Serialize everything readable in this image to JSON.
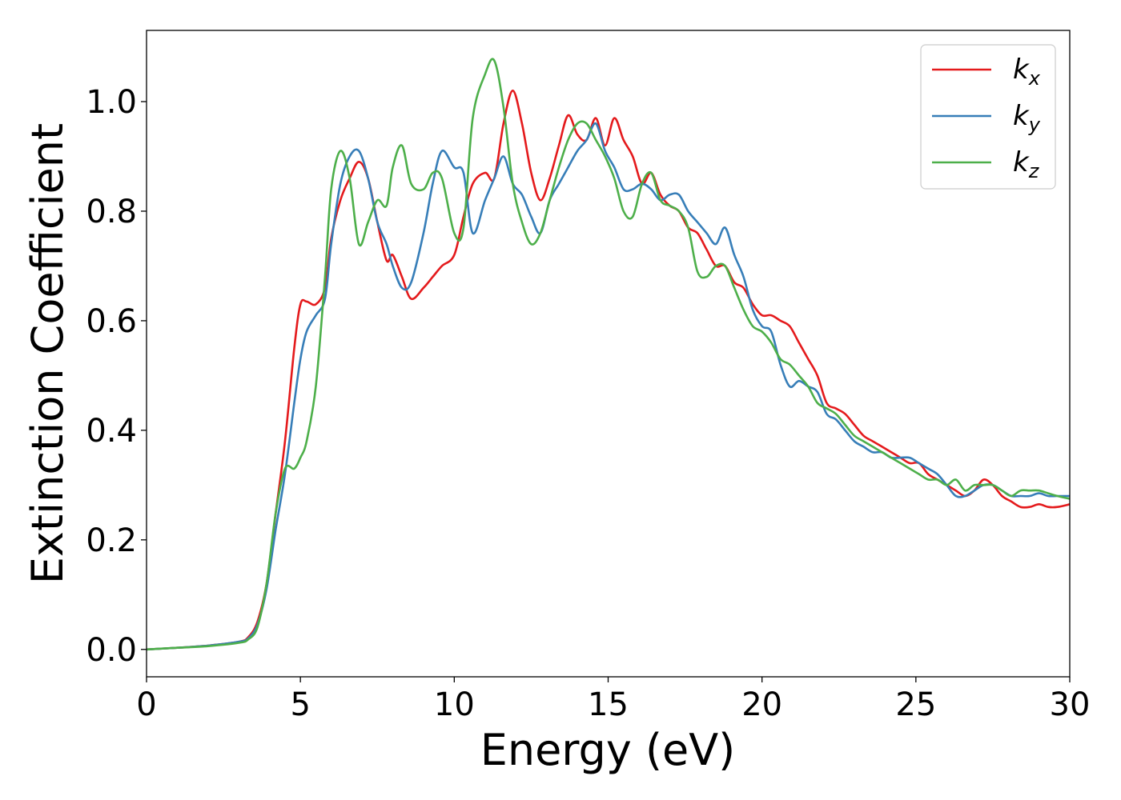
{
  "chart_data": {
    "type": "line",
    "title": "",
    "xlabel": "Energy (eV)",
    "ylabel": "Extinction Coefficient",
    "xlim": [
      0,
      30
    ],
    "ylim": [
      -0.05,
      1.13
    ],
    "xticks": [
      0,
      5,
      10,
      15,
      20,
      25,
      30
    ],
    "xtick_labels": [
      "0",
      "5",
      "10",
      "15",
      "20",
      "25",
      "30"
    ],
    "yticks": [
      0.0,
      0.2,
      0.4,
      0.6,
      0.8,
      1.0
    ],
    "ytick_labels": [
      "0.0",
      "0.2",
      "0.4",
      "0.6",
      "0.8",
      "1.0"
    ],
    "grid": false,
    "legend_position": "top-right",
    "series": [
      {
        "name": "k_x",
        "label_main": "k",
        "label_sub": "x",
        "color": "#e41a1c",
        "x": [
          0,
          1,
          2,
          3,
          3.3,
          3.6,
          3.9,
          4.2,
          4.5,
          4.8,
          5.0,
          5.2,
          5.5,
          5.8,
          6.0,
          6.3,
          6.6,
          6.9,
          7.2,
          7.5,
          7.8,
          8.0,
          8.3,
          8.6,
          9.0,
          9.3,
          9.6,
          10.0,
          10.3,
          10.6,
          11.0,
          11.3,
          11.6,
          11.9,
          12.2,
          12.5,
          12.8,
          13.1,
          13.4,
          13.7,
          14.0,
          14.3,
          14.6,
          14.9,
          15.2,
          15.5,
          15.8,
          16.1,
          16.4,
          16.7,
          17.0,
          17.3,
          17.6,
          17.9,
          18.2,
          18.5,
          18.8,
          19.1,
          19.4,
          19.7,
          20.0,
          20.3,
          20.6,
          20.9,
          21.2,
          21.5,
          21.8,
          22.1,
          22.4,
          22.7,
          23.0,
          23.3,
          23.6,
          23.9,
          24.2,
          24.5,
          24.8,
          25.1,
          25.4,
          25.7,
          26.0,
          26.3,
          26.6,
          26.9,
          27.2,
          27.5,
          27.8,
          28.1,
          28.4,
          28.7,
          29.0,
          29.3,
          29.6,
          30.0
        ],
        "y": [
          0,
          0.003,
          0.007,
          0.014,
          0.022,
          0.05,
          0.12,
          0.25,
          0.38,
          0.55,
          0.63,
          0.635,
          0.63,
          0.66,
          0.75,
          0.82,
          0.86,
          0.89,
          0.86,
          0.78,
          0.71,
          0.72,
          0.68,
          0.64,
          0.66,
          0.68,
          0.7,
          0.72,
          0.79,
          0.85,
          0.87,
          0.86,
          0.96,
          1.02,
          0.96,
          0.87,
          0.82,
          0.86,
          0.92,
          0.975,
          0.94,
          0.93,
          0.97,
          0.92,
          0.97,
          0.93,
          0.9,
          0.85,
          0.87,
          0.83,
          0.81,
          0.8,
          0.77,
          0.76,
          0.73,
          0.7,
          0.7,
          0.67,
          0.66,
          0.63,
          0.61,
          0.61,
          0.6,
          0.59,
          0.56,
          0.53,
          0.5,
          0.45,
          0.44,
          0.43,
          0.41,
          0.39,
          0.38,
          0.37,
          0.36,
          0.35,
          0.34,
          0.34,
          0.32,
          0.31,
          0.3,
          0.29,
          0.28,
          0.29,
          0.31,
          0.3,
          0.28,
          0.27,
          0.26,
          0.26,
          0.265,
          0.26,
          0.26,
          0.265
        ]
      },
      {
        "name": "k_y",
        "label_main": "k",
        "label_sub": "y",
        "color": "#377eb8",
        "x": [
          0,
          1,
          2,
          3,
          3.3,
          3.6,
          3.9,
          4.2,
          4.5,
          4.8,
          5.0,
          5.2,
          5.5,
          5.8,
          6.0,
          6.3,
          6.6,
          6.9,
          7.2,
          7.5,
          7.8,
          8.0,
          8.3,
          8.6,
          9.0,
          9.3,
          9.6,
          10.0,
          10.3,
          10.6,
          11.0,
          11.3,
          11.6,
          11.9,
          12.2,
          12.5,
          12.8,
          13.1,
          13.4,
          13.7,
          14.0,
          14.3,
          14.6,
          14.9,
          15.2,
          15.5,
          15.8,
          16.1,
          16.4,
          16.7,
          17.0,
          17.3,
          17.6,
          17.9,
          18.2,
          18.5,
          18.8,
          19.1,
          19.4,
          19.7,
          20.0,
          20.3,
          20.6,
          20.9,
          21.2,
          21.5,
          21.8,
          22.1,
          22.4,
          22.7,
          23.0,
          23.3,
          23.6,
          23.9,
          24.2,
          24.5,
          24.8,
          25.1,
          25.4,
          25.7,
          26.0,
          26.3,
          26.6,
          26.9,
          27.2,
          27.5,
          27.8,
          28.1,
          28.4,
          28.7,
          29.0,
          29.3,
          29.6,
          30.0
        ],
        "y": [
          0,
          0.003,
          0.007,
          0.014,
          0.02,
          0.045,
          0.11,
          0.22,
          0.32,
          0.45,
          0.53,
          0.58,
          0.61,
          0.64,
          0.74,
          0.85,
          0.9,
          0.91,
          0.86,
          0.78,
          0.74,
          0.7,
          0.66,
          0.67,
          0.76,
          0.85,
          0.91,
          0.88,
          0.87,
          0.76,
          0.82,
          0.86,
          0.9,
          0.85,
          0.83,
          0.79,
          0.76,
          0.82,
          0.85,
          0.88,
          0.91,
          0.93,
          0.96,
          0.91,
          0.88,
          0.84,
          0.84,
          0.85,
          0.84,
          0.82,
          0.83,
          0.83,
          0.8,
          0.78,
          0.76,
          0.74,
          0.77,
          0.72,
          0.68,
          0.62,
          0.59,
          0.58,
          0.52,
          0.48,
          0.49,
          0.48,
          0.47,
          0.43,
          0.42,
          0.4,
          0.38,
          0.37,
          0.36,
          0.36,
          0.35,
          0.35,
          0.35,
          0.34,
          0.33,
          0.32,
          0.3,
          0.28,
          0.28,
          0.29,
          0.3,
          0.3,
          0.29,
          0.28,
          0.28,
          0.28,
          0.285,
          0.28,
          0.28,
          0.28
        ]
      },
      {
        "name": "k_z",
        "label_main": "k",
        "label_sub": "z",
        "color": "#4daf4a",
        "x": [
          0,
          1,
          2,
          3,
          3.3,
          3.6,
          3.9,
          4.2,
          4.5,
          4.8,
          5.0,
          5.2,
          5.5,
          5.8,
          6.0,
          6.3,
          6.6,
          6.9,
          7.2,
          7.5,
          7.8,
          8.0,
          8.3,
          8.6,
          9.0,
          9.3,
          9.6,
          10.0,
          10.3,
          10.6,
          11.0,
          11.3,
          11.6,
          11.9,
          12.2,
          12.5,
          12.8,
          13.1,
          13.4,
          13.7,
          14.0,
          14.3,
          14.6,
          14.9,
          15.2,
          15.5,
          15.8,
          16.1,
          16.4,
          16.7,
          17.0,
          17.3,
          17.6,
          17.9,
          18.2,
          18.5,
          18.8,
          19.1,
          19.4,
          19.7,
          20.0,
          20.3,
          20.6,
          20.9,
          21.2,
          21.5,
          21.8,
          22.1,
          22.4,
          22.7,
          23.0,
          23.3,
          23.6,
          23.9,
          24.2,
          24.5,
          24.8,
          25.1,
          25.4,
          25.7,
          26.0,
          26.3,
          26.6,
          26.9,
          27.2,
          27.5,
          27.8,
          28.1,
          28.4,
          28.7,
          29.0,
          29.3,
          29.6,
          30.0
        ],
        "y": [
          0,
          0.003,
          0.006,
          0.012,
          0.018,
          0.04,
          0.12,
          0.25,
          0.33,
          0.33,
          0.35,
          0.38,
          0.48,
          0.68,
          0.84,
          0.91,
          0.86,
          0.74,
          0.78,
          0.82,
          0.81,
          0.88,
          0.92,
          0.85,
          0.84,
          0.87,
          0.86,
          0.76,
          0.77,
          0.97,
          1.05,
          1.075,
          0.99,
          0.85,
          0.78,
          0.74,
          0.76,
          0.82,
          0.88,
          0.93,
          0.96,
          0.96,
          0.93,
          0.9,
          0.86,
          0.8,
          0.79,
          0.85,
          0.87,
          0.82,
          0.81,
          0.8,
          0.77,
          0.69,
          0.68,
          0.7,
          0.7,
          0.66,
          0.62,
          0.59,
          0.58,
          0.56,
          0.53,
          0.52,
          0.5,
          0.48,
          0.45,
          0.44,
          0.43,
          0.41,
          0.39,
          0.38,
          0.37,
          0.36,
          0.35,
          0.34,
          0.33,
          0.32,
          0.31,
          0.31,
          0.3,
          0.31,
          0.29,
          0.3,
          0.3,
          0.3,
          0.29,
          0.28,
          0.29,
          0.29,
          0.29,
          0.285,
          0.28,
          0.275
        ]
      }
    ]
  }
}
